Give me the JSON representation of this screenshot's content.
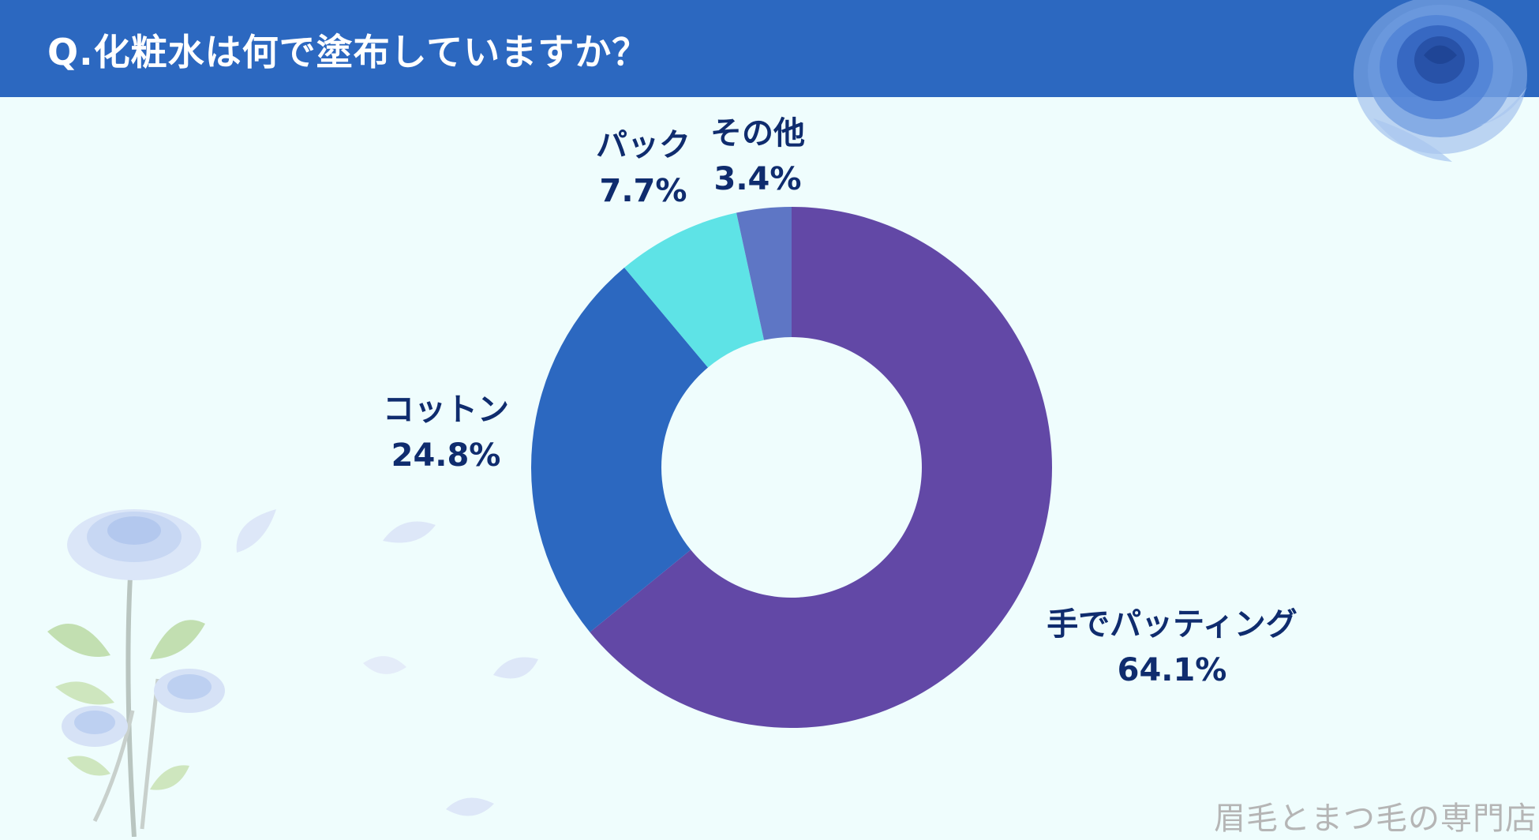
{
  "header": {
    "title": "Q.化粧水は何で塗布していますか？"
  },
  "colors": {
    "header_bg": "#2c68c0",
    "background": "#effdfd",
    "label_text": "#0f2c6e"
  },
  "chart_data": {
    "type": "pie",
    "variant": "donut",
    "title": "Q.化粧水は何で塗布していますか？",
    "unit": "%",
    "start_direction": "top",
    "direction": "clockwise",
    "slices": [
      {
        "label": "手でパッティング",
        "value": 64.1,
        "display": "64.1%",
        "color": "#6248a6"
      },
      {
        "label": "コットン",
        "value": 24.8,
        "display": "24.8%",
        "color": "#2c68c0"
      },
      {
        "label": "パック",
        "value": 7.7,
        "display": "7.7%",
        "color": "#5ee3e6"
      },
      {
        "label": "その他",
        "value": 3.4,
        "display": "3.4%",
        "color": "#5e76c5"
      }
    ]
  },
  "watermark": "眉毛とまつ毛の専門店"
}
